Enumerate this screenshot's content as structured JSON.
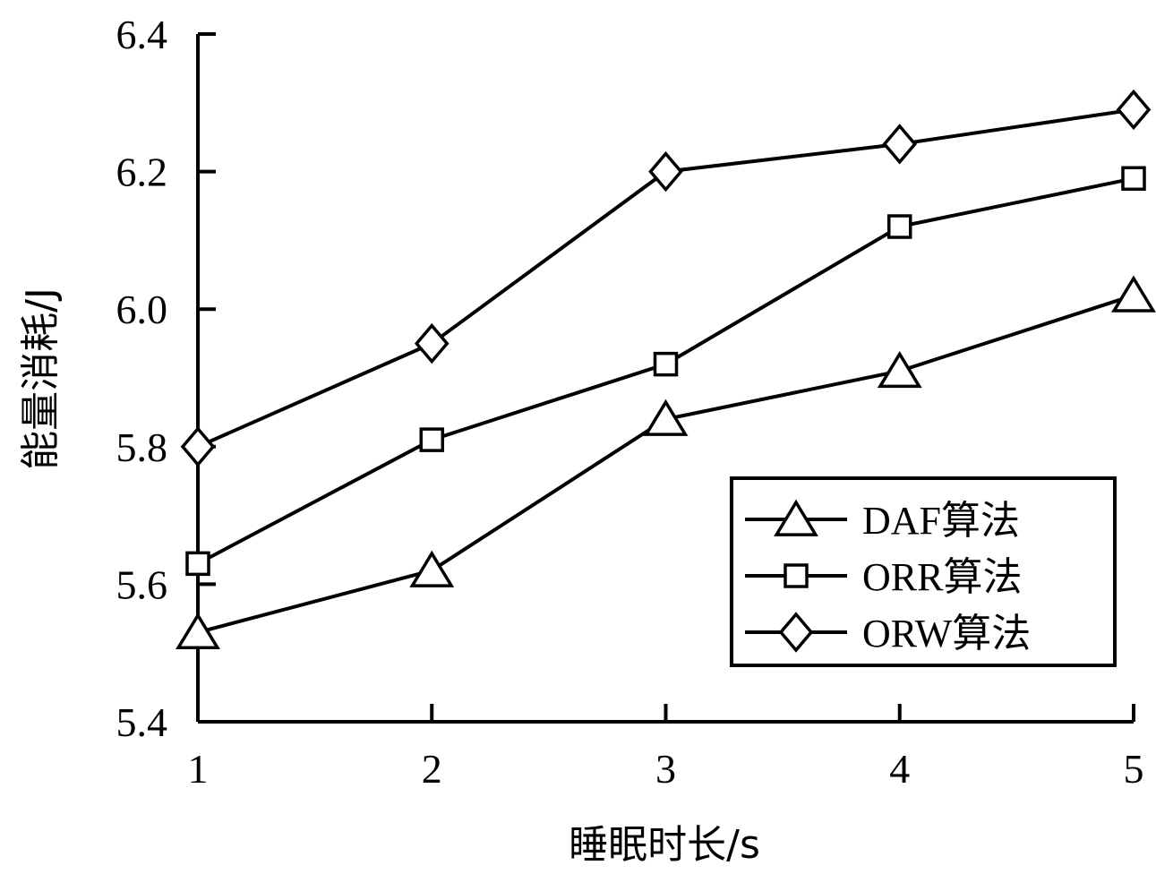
{
  "chart_data": {
    "type": "line",
    "title": "",
    "xlabel": "睡眠时长/s",
    "ylabel": "能量消耗/J",
    "x": [
      1,
      2,
      3,
      4,
      5
    ],
    "xlim": [
      1,
      5
    ],
    "ylim": [
      5.4,
      6.4
    ],
    "yticks": [
      "5.4",
      "5.6",
      "5.8",
      "6.0",
      "6.2",
      "6.4"
    ],
    "xticks": [
      "1",
      "2",
      "3",
      "4",
      "5"
    ],
    "grid": false,
    "legend_position": "bottom-right",
    "series": [
      {
        "name": "DAF算法",
        "marker": "triangle",
        "values": [
          5.53,
          5.62,
          5.84,
          5.91,
          6.02
        ]
      },
      {
        "name": "ORR算法",
        "marker": "square",
        "values": [
          5.63,
          5.81,
          5.92,
          6.12,
          6.19
        ]
      },
      {
        "name": "ORW算法",
        "marker": "diamond",
        "values": [
          5.8,
          5.95,
          6.2,
          6.24,
          6.29
        ]
      }
    ]
  }
}
